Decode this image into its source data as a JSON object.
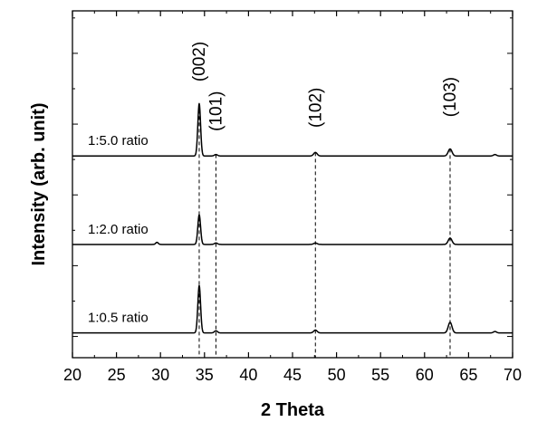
{
  "chart_data": {
    "type": "line",
    "title": "",
    "xlabel": "2 Theta",
    "ylabel": "Intensity (arb. unit)",
    "xlim": [
      20,
      70
    ],
    "x_ticks": [
      "20",
      "25",
      "30",
      "35",
      "40",
      "45",
      "50",
      "55",
      "60",
      "65",
      "70"
    ],
    "y_ticks_labeled": false,
    "grid": false,
    "legend": "none",
    "series": [
      {
        "name": "1:5.0 ratio",
        "baseline": 2.55,
        "peaks": [
          {
            "x": 34.4,
            "height": 0.74,
            "width": 0.22
          },
          {
            "x": 36.3,
            "height": 0.02,
            "width": 0.25
          },
          {
            "x": 47.6,
            "height": 0.05,
            "width": 0.28
          },
          {
            "x": 62.9,
            "height": 0.1,
            "width": 0.3
          },
          {
            "x": 68.0,
            "height": 0.02,
            "width": 0.25
          }
        ]
      },
      {
        "name": "1:2.0 ratio",
        "baseline": 1.3,
        "peaks": [
          {
            "x": 29.6,
            "height": 0.03,
            "width": 0.2
          },
          {
            "x": 34.4,
            "height": 0.42,
            "width": 0.22
          },
          {
            "x": 36.3,
            "height": 0.02,
            "width": 0.25
          },
          {
            "x": 47.6,
            "height": 0.02,
            "width": 0.28
          },
          {
            "x": 62.9,
            "height": 0.09,
            "width": 0.3
          }
        ]
      },
      {
        "name": "1:0.5 ratio",
        "baseline": 0.05,
        "peaks": [
          {
            "x": 34.4,
            "height": 0.67,
            "width": 0.22
          },
          {
            "x": 36.3,
            "height": 0.03,
            "width": 0.25
          },
          {
            "x": 47.6,
            "height": 0.04,
            "width": 0.28
          },
          {
            "x": 62.9,
            "height": 0.15,
            "width": 0.3
          },
          {
            "x": 68.0,
            "height": 0.02,
            "width": 0.25
          }
        ]
      }
    ],
    "reference_lines": [
      {
        "x": 34.4,
        "label": "(002)",
        "label_y": 3.6
      },
      {
        "x": 36.3,
        "label": "(101)",
        "label_y": 2.9
      },
      {
        "x": 47.6,
        "label": "(102)",
        "label_y": 2.95
      },
      {
        "x": 62.9,
        "label": "(103)",
        "label_y": 3.1
      }
    ],
    "ylim": [
      -0.3,
      4.6
    ]
  }
}
